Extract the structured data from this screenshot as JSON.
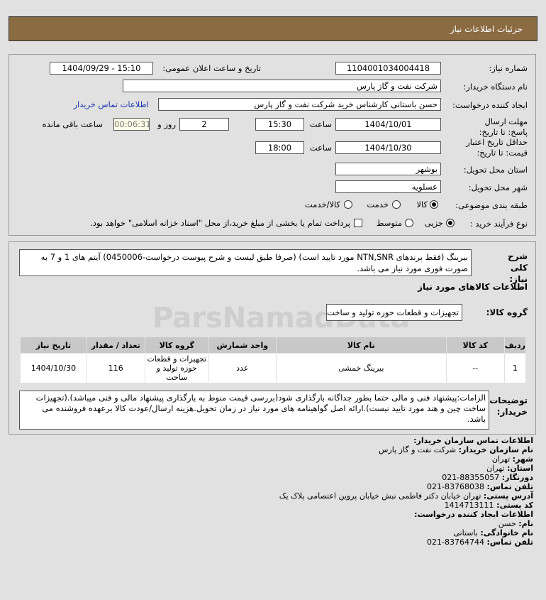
{
  "header": {
    "title": "جزئیات اطلاعات نیاز"
  },
  "form": {
    "need_number_label": "شماره نیاز:",
    "need_number": "1104001034004418",
    "announce_label": "تاریخ و ساعت اعلان عمومی:",
    "announce_value": "1404/09/29 - 15:10",
    "buyer_org_label": "نام دستگاه خریدار:",
    "buyer_org": "شرکت نفت و گاز پارس",
    "creator_label": "ایجاد کننده درخواست:",
    "creator": "حسن باستانی کارشناس خرید شرکت نفت و گاز پارس",
    "contact_link": "اطلاعات تماس خریدار",
    "deadline_label": "مهلت ارسال پاسخ: تا تاریخ:",
    "deadline_date": "1404/10/01",
    "time_label": "ساعت",
    "deadline_time": "15:30",
    "days": "2",
    "days_label": "روز و",
    "remaining": "00:06:31",
    "remaining_label": "ساعت باقی مانده",
    "validity_label": "حداقل تاریخ اعتبار قیمت: تا تاریخ:",
    "validity_date": "1404/10/30",
    "validity_time": "18:00",
    "province_label": "استان محل تحویل:",
    "province": "بوشهر",
    "city_label": "شهر محل تحویل:",
    "city": "عسلویه",
    "category_label": "طبقه بندی موضوعی:",
    "category_options": [
      "کالا",
      "خدمت",
      "کالا/خدمت"
    ],
    "category_selected": "کالا",
    "process_label": "نوع فرآیند خرید :",
    "process_options": [
      "جزیی",
      "متوسط"
    ],
    "process_selected": "جزیی",
    "payment_note": "پرداخت تمام یا بخشی از مبلغ خرید،از محل \"اسناد خزانه اسلامی\" خواهد بود."
  },
  "details": {
    "desc_label": "شرح کلی نیاز:",
    "desc": "بیرینگ (فقط برندهای NTN,SNR مورد تایید است) (صرفا طبق لیست و شرح پیوست درخواست-0450006) آیتم های 1 و 7 به صورت فوری مورد نیاز می باشد.",
    "goods_title": "اطلاعات کالاهای مورد نیاز",
    "group_label": "گروه کالا:",
    "group": "تجهیزات و قطعات حوزه تولید و ساخت",
    "table": {
      "headers": [
        "ردیف",
        "کد کالا",
        "نام کالا",
        "واحد شمارش",
        "گروه کالا",
        "تعداد / مقدار",
        "تاریخ نیاز"
      ],
      "rows": [
        [
          "1",
          "--",
          "بیرینگ خمشی",
          "عدد",
          "تجهیزات و قطعات حوزه تولید و ساخت",
          "116",
          "1404/10/30"
        ]
      ]
    },
    "notes_label": "توضیحات خریدار:",
    "notes": "الزامات:پیشنهاد فنی و مالی حتما بطور جداگانه بارگذاری شود(بررسی قیمت منوط به بارگذاری پیشنهاد مالی و فنی میباشد).(تجهیزات ساخت چین و هند مورد تایید نیست).ارائه اصل گواهینامه های مورد نیاز در زمان تحویل.هزینه ارسال/عودت کالا برعهده فروشنده می باشد."
  },
  "contact": {
    "title": "اطلاعات تماس سازمان خریدار:",
    "items": [
      {
        "label": "نام سازمان خریدار:",
        "value": "شرکت نفت و گاز پارس"
      },
      {
        "label": "شهر:",
        "value": "تهران"
      },
      {
        "label": "استان:",
        "value": "تهران"
      },
      {
        "label": "دورنگار:",
        "value": "88355057-021"
      },
      {
        "label": "تلفن تماس:",
        "value": "83768038-021"
      },
      {
        "label": "آدرس پستی:",
        "value": "تهران خیابان دکتر فاطمی نبش خیابان پروین اعتصامی پلاک یک"
      },
      {
        "label": "کد پستی:",
        "value": "1414713111"
      }
    ],
    "creator_title": "اطلاعات ایجاد کننده درخواست:",
    "creator_items": [
      {
        "label": "نام:",
        "value": "حسن"
      },
      {
        "label": "نام خانوادگی:",
        "value": "باستانی"
      },
      {
        "label": "تلفن تماس:",
        "value": "83764744-021"
      }
    ]
  },
  "watermark": "ParsNamadData"
}
